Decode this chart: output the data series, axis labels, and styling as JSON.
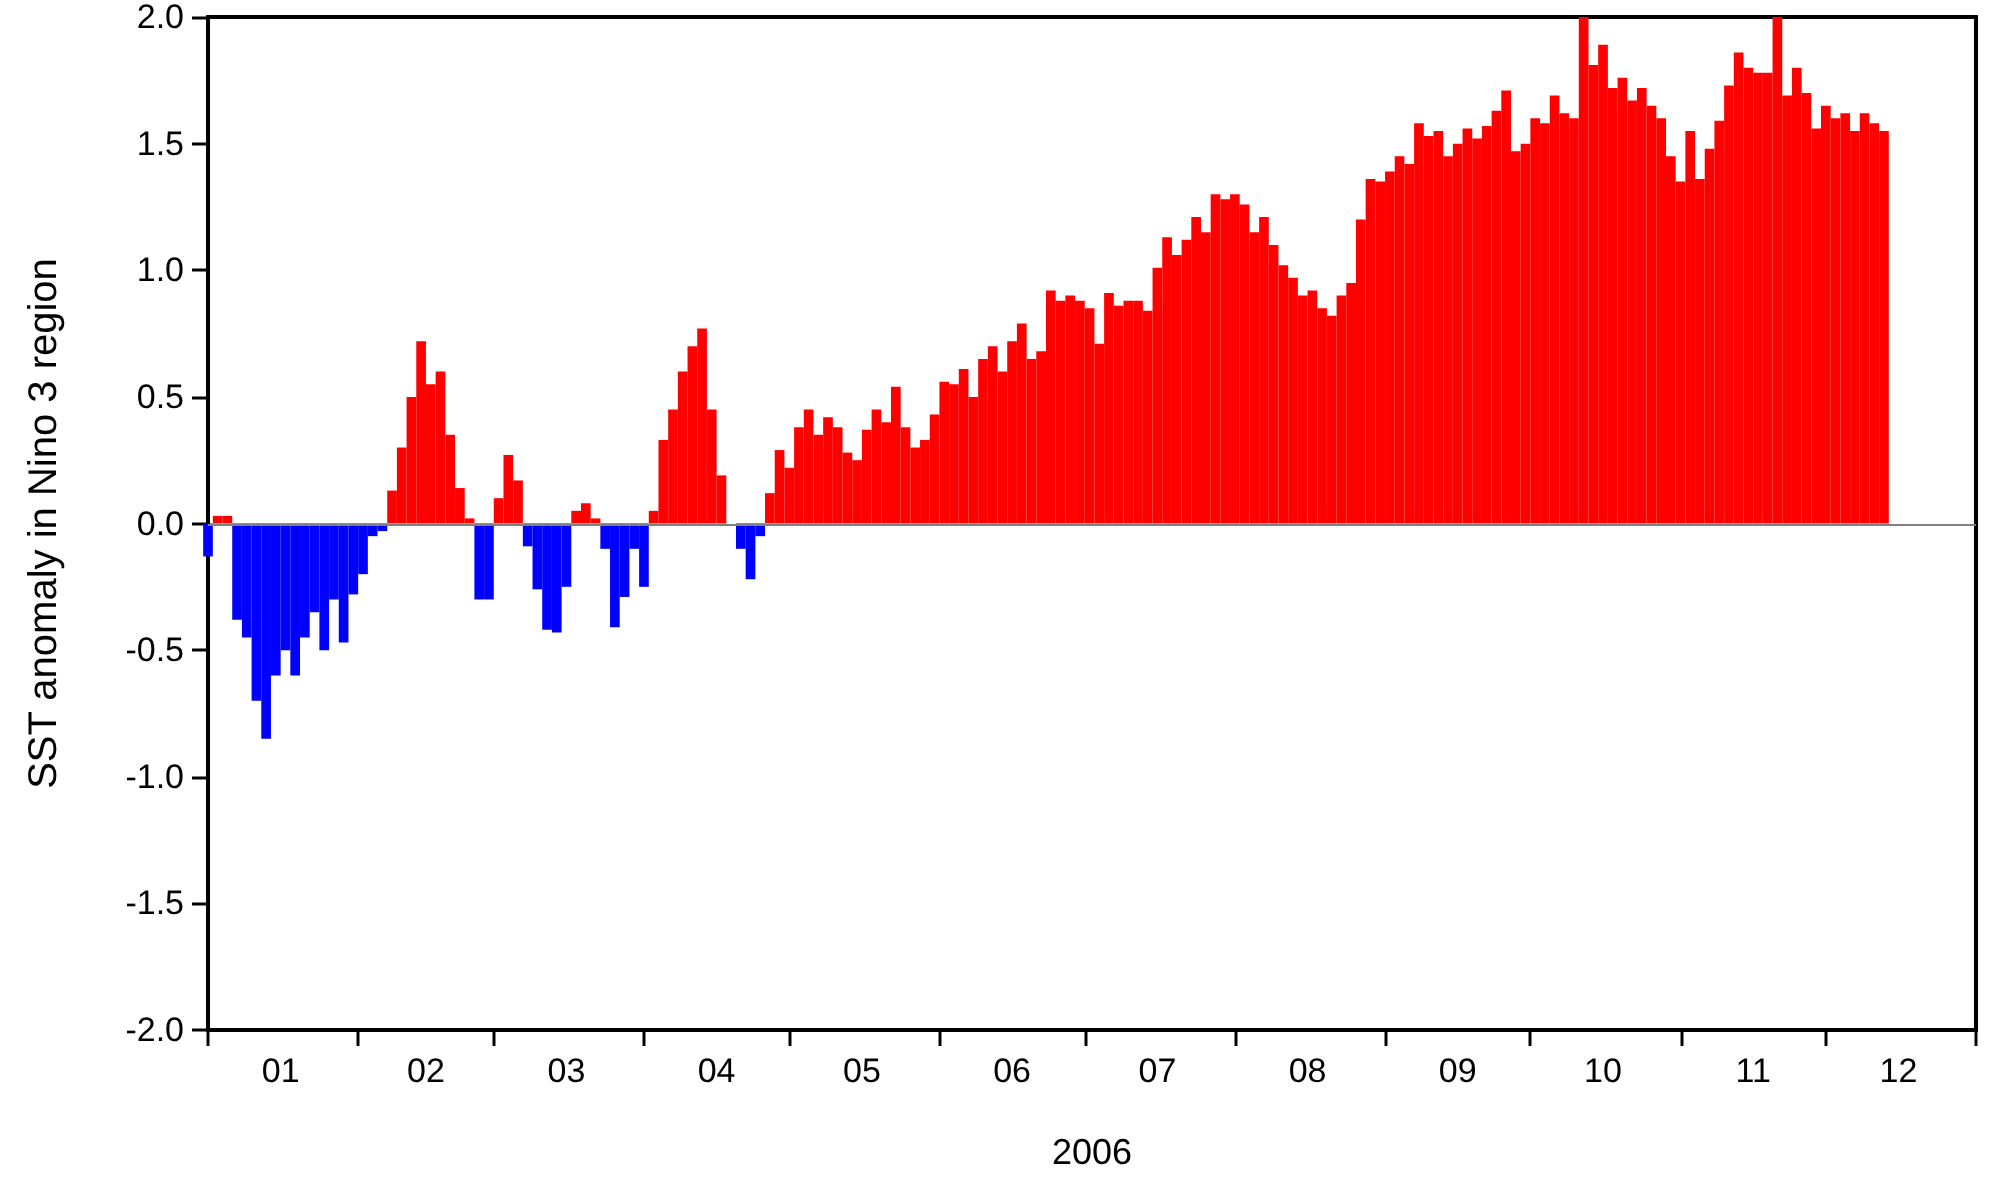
{
  "chart_data": {
    "type": "bar",
    "xlabel": "2006",
    "ylabel": "SST anomaly in Nino 3 region",
    "x": [
      "2006-01-01",
      "2006-01-03",
      "2006-01-05",
      "2006-01-07",
      "2006-01-09",
      "2006-01-11",
      "2006-01-13",
      "2006-01-15",
      "2006-01-17",
      "2006-01-19",
      "2006-01-21",
      "2006-01-23",
      "2006-01-25",
      "2006-01-27",
      "2006-01-29",
      "2006-01-31",
      "2006-02-02",
      "2006-02-04",
      "2006-02-06",
      "2006-02-08",
      "2006-02-10",
      "2006-02-12",
      "2006-02-14",
      "2006-02-16",
      "2006-02-18",
      "2006-02-20",
      "2006-02-22",
      "2006-02-24",
      "2006-02-26",
      "2006-02-28",
      "2006-03-02",
      "2006-03-04",
      "2006-03-06",
      "2006-03-08",
      "2006-03-10",
      "2006-03-12",
      "2006-03-14",
      "2006-03-16",
      "2006-03-18",
      "2006-03-20",
      "2006-03-22",
      "2006-03-24",
      "2006-03-26",
      "2006-03-28",
      "2006-03-30",
      "2006-04-01",
      "2006-04-03",
      "2006-04-05",
      "2006-04-07",
      "2006-04-09",
      "2006-04-11",
      "2006-04-13",
      "2006-04-15",
      "2006-04-17",
      "2006-04-19",
      "2006-04-21",
      "2006-04-23",
      "2006-04-25",
      "2006-04-27",
      "2006-04-29",
      "2006-05-01",
      "2006-05-03",
      "2006-05-05",
      "2006-05-07",
      "2006-05-09",
      "2006-05-11",
      "2006-05-13",
      "2006-05-15",
      "2006-05-17",
      "2006-05-19",
      "2006-05-21",
      "2006-05-23",
      "2006-05-25",
      "2006-05-27",
      "2006-05-29",
      "2006-05-31",
      "2006-06-02",
      "2006-06-04",
      "2006-06-06",
      "2006-06-08",
      "2006-06-10",
      "2006-06-12",
      "2006-06-14",
      "2006-06-16",
      "2006-06-18",
      "2006-06-20",
      "2006-06-22",
      "2006-06-24",
      "2006-06-26",
      "2006-06-28",
      "2006-06-30",
      "2006-07-02",
      "2006-07-04",
      "2006-07-06",
      "2006-07-08",
      "2006-07-10",
      "2006-07-12",
      "2006-07-14",
      "2006-07-16",
      "2006-07-18",
      "2006-07-20",
      "2006-07-22",
      "2006-07-24",
      "2006-07-26",
      "2006-07-28",
      "2006-07-30",
      "2006-08-01",
      "2006-08-03",
      "2006-08-05",
      "2006-08-07",
      "2006-08-09",
      "2006-08-11",
      "2006-08-13",
      "2006-08-15",
      "2006-08-17",
      "2006-08-19",
      "2006-08-21",
      "2006-08-23",
      "2006-08-25",
      "2006-08-27",
      "2006-08-29",
      "2006-08-31",
      "2006-09-02",
      "2006-09-04",
      "2006-09-06",
      "2006-09-08",
      "2006-09-10",
      "2006-09-12",
      "2006-09-14",
      "2006-09-16",
      "2006-09-18",
      "2006-09-20",
      "2006-09-22",
      "2006-09-24",
      "2006-09-26",
      "2006-09-28",
      "2006-09-30",
      "2006-10-02",
      "2006-10-04",
      "2006-10-06",
      "2006-10-08",
      "2006-10-10",
      "2006-10-12",
      "2006-10-14",
      "2006-10-16",
      "2006-10-18",
      "2006-10-20",
      "2006-10-22",
      "2006-10-24",
      "2006-10-26",
      "2006-10-28",
      "2006-10-30",
      "2006-11-01",
      "2006-11-03",
      "2006-11-05",
      "2006-11-07",
      "2006-11-09",
      "2006-11-11",
      "2006-11-13",
      "2006-11-15",
      "2006-11-17",
      "2006-11-19",
      "2006-11-21",
      "2006-11-23",
      "2006-11-25",
      "2006-11-27",
      "2006-11-29",
      "2006-12-01",
      "2006-12-03",
      "2006-12-05",
      "2006-12-07",
      "2006-12-09",
      "2006-12-11",
      "2006-12-13"
    ],
    "values": [
      -0.13,
      0.03,
      0.03,
      -0.38,
      -0.45,
      -0.7,
      -0.85,
      -0.6,
      -0.5,
      -0.6,
      -0.45,
      -0.35,
      -0.5,
      -0.3,
      -0.47,
      -0.28,
      -0.2,
      -0.05,
      -0.03,
      0.13,
      0.3,
      0.5,
      0.72,
      0.55,
      0.6,
      0.35,
      0.14,
      0.02,
      -0.3,
      -0.3,
      0.1,
      0.27,
      0.17,
      -0.09,
      -0.26,
      -0.42,
      -0.43,
      -0.25,
      0.05,
      0.08,
      0.02,
      -0.1,
      -0.41,
      -0.29,
      -0.1,
      -0.25,
      0.05,
      0.33,
      0.45,
      0.6,
      0.7,
      0.77,
      0.45,
      0.19,
      0.0,
      -0.1,
      -0.22,
      -0.05,
      0.12,
      0.29,
      0.22,
      0.38,
      0.45,
      0.35,
      0.42,
      0.38,
      0.28,
      0.25,
      0.37,
      0.45,
      0.4,
      0.54,
      0.38,
      0.3,
      0.33,
      0.43,
      0.56,
      0.55,
      0.61,
      0.5,
      0.65,
      0.7,
      0.6,
      0.72,
      0.79,
      0.65,
      0.68,
      0.92,
      0.88,
      0.9,
      0.88,
      0.85,
      0.71,
      0.91,
      0.86,
      0.88,
      0.88,
      0.84,
      1.01,
      1.13,
      1.06,
      1.12,
      1.21,
      1.15,
      1.3,
      1.28,
      1.3,
      1.26,
      1.15,
      1.21,
      1.1,
      1.02,
      0.97,
      0.9,
      0.92,
      0.85,
      0.82,
      0.9,
      0.95,
      1.2,
      1.36,
      1.35,
      1.39,
      1.45,
      1.42,
      1.58,
      1.53,
      1.55,
      1.45,
      1.5,
      1.56,
      1.52,
      1.57,
      1.63,
      1.71,
      1.47,
      1.5,
      1.6,
      1.58,
      1.69,
      1.62,
      1.6,
      2.0,
      1.81,
      1.89,
      1.72,
      1.76,
      1.67,
      1.72,
      1.65,
      1.6,
      1.45,
      1.35,
      1.55,
      1.36,
      1.48,
      1.59,
      1.73,
      1.86,
      1.8,
      1.78,
      1.78,
      2.0,
      1.69,
      1.8,
      1.7,
      1.56,
      1.65,
      1.6,
      1.62,
      1.55,
      1.62,
      1.58,
      1.55
    ],
    "colors": [
      "#0000ff",
      "#ff0000",
      "#ff0000",
      "#0000ff",
      "#0000ff",
      "#0000ff",
      "#0000ff",
      "#0000ff",
      "#0000ff",
      "#0000ff",
      "#0000ff",
      "#0000ff",
      "#0000ff",
      "#0000ff",
      "#0000ff",
      "#0000ff",
      "#0000ff",
      "#0000ff",
      "#0000ff",
      "#ff0000",
      "#ff0000",
      "#ff0000",
      "#ff0000",
      "#ff0000",
      "#ff0000",
      "#ff0000",
      "#ff0000",
      "#ff0000",
      "#0000ff",
      "#0000ff",
      "#ff0000",
      "#ff0000",
      "#ff0000",
      "#0000ff",
      "#0000ff",
      "#0000ff",
      "#0000ff",
      "#0000ff",
      "#ff0000",
      "#ff0000",
      "#ff0000",
      "#0000ff",
      "#0000ff",
      "#0000ff",
      "#0000ff",
      "#0000ff",
      "#ff0000",
      "#ff0000",
      "#ff0000",
      "#ff0000",
      "#ff0000",
      "#ff0000",
      "#ff0000",
      "#ff0000",
      "#ff0000",
      "#0000ff",
      "#0000ff",
      "#0000ff",
      "#ff0000",
      "#ff0000",
      "#ff0000",
      "#ff0000",
      "#ff0000",
      "#ff0000",
      "#ff0000",
      "#ff0000",
      "#ff0000",
      "#ff0000",
      "#ff0000",
      "#ff0000",
      "#ff0000",
      "#ff0000",
      "#ff0000",
      "#ff0000",
      "#ff0000",
      "#ff0000",
      "#ff0000",
      "#ff0000",
      "#ff0000",
      "#ff0000",
      "#ff0000",
      "#ff0000",
      "#ff0000",
      "#ff0000",
      "#ff0000",
      "#ff0000",
      "#ff0000",
      "#ff0000",
      "#ff0000",
      "#ff0000",
      "#ff0000",
      "#ff0000",
      "#ff0000",
      "#ff0000",
      "#ff0000",
      "#ff0000",
      "#ff0000",
      "#ff0000",
      "#ff0000",
      "#ff0000",
      "#ff0000",
      "#ff0000",
      "#ff0000",
      "#ff0000",
      "#ff0000",
      "#ff0000",
      "#ff0000",
      "#ff0000",
      "#ff0000",
      "#ff0000",
      "#ff0000",
      "#ff0000",
      "#ff0000",
      "#ff0000",
      "#ff0000",
      "#ff0000",
      "#ff0000",
      "#ff0000",
      "#ff0000",
      "#ff0000",
      "#ff0000",
      "#ff0000",
      "#ff0000",
      "#ff0000",
      "#ff0000",
      "#ff0000",
      "#ff0000",
      "#ff0000",
      "#ff0000",
      "#ff0000",
      "#ff0000",
      "#ff0000",
      "#ff0000",
      "#ff0000",
      "#ff0000",
      "#ff0000",
      "#ff0000",
      "#ff0000",
      "#ff0000",
      "#ff0000",
      "#ff0000",
      "#ff0000",
      "#ff0000",
      "#ff0000",
      "#ff0000",
      "#ff0000",
      "#ff0000",
      "#ff0000",
      "#ff0000",
      "#ff0000",
      "#ff0000",
      "#ff0000",
      "#ff0000",
      "#ff0000",
      "#ff0000",
      "#ff0000",
      "#ff0000",
      "#ff0000",
      "#ff0000",
      "#ff0000",
      "#ff0000",
      "#ff0000",
      "#ff0000",
      "#ff0000",
      "#ff0000",
      "#ff0000",
      "#ff0000",
      "#ff0000",
      "#ff0000",
      "#ff0000",
      "#ff0000",
      "#ff0000",
      "#ff0000",
      "#ff0000"
    ],
    "xlim": [
      "2006-01-01",
      "2007-01-01"
    ],
    "xticks": [
      {
        "value": "2006-01-01",
        "label": null
      },
      {
        "value": "2006-01-16",
        "label": "01"
      },
      {
        "value": "2006-02-01",
        "label": null
      },
      {
        "value": "2006-02-15",
        "label": "02"
      },
      {
        "value": "2006-03-01",
        "label": null
      },
      {
        "value": "2006-03-16",
        "label": "03"
      },
      {
        "value": "2006-04-01",
        "label": null
      },
      {
        "value": "2006-04-16",
        "label": "04"
      },
      {
        "value": "2006-05-01",
        "label": null
      },
      {
        "value": "2006-05-16",
        "label": "05"
      },
      {
        "value": "2006-06-01",
        "label": null
      },
      {
        "value": "2006-06-16",
        "label": "06"
      },
      {
        "value": "2006-07-01",
        "label": null
      },
      {
        "value": "2006-07-16",
        "label": "07"
      },
      {
        "value": "2006-08-01",
        "label": null
      },
      {
        "value": "2006-08-16",
        "label": "08"
      },
      {
        "value": "2006-09-01",
        "label": null
      },
      {
        "value": "2006-09-16",
        "label": "09"
      },
      {
        "value": "2006-10-01",
        "label": null
      },
      {
        "value": "2006-10-16",
        "label": "10"
      },
      {
        "value": "2006-11-01",
        "label": null
      },
      {
        "value": "2006-11-16",
        "label": "11"
      },
      {
        "value": "2006-12-01",
        "label": null
      },
      {
        "value": "2006-12-16",
        "label": "12"
      },
      {
        "value": "2007-01-01",
        "label": null
      }
    ],
    "ylim": [
      -2,
      2
    ],
    "yticks": [
      {
        "value": -2,
        "label": "-2.0"
      },
      {
        "value": -1.5,
        "label": "-1.5"
      },
      {
        "value": -1,
        "label": "-1.0"
      },
      {
        "value": -0.5,
        "label": "-0.5"
      },
      {
        "value": 0,
        "label": "0.0"
      },
      {
        "value": 0.5,
        "label": "0.5"
      },
      {
        "value": 1,
        "label": "1.0"
      },
      {
        "value": 1.5,
        "label": "1.5"
      },
      {
        "value": 2,
        "label": "2.0"
      }
    ],
    "ref_lines": [
      {
        "axis": "y",
        "value": 0,
        "color": "#808080"
      }
    ],
    "grid": false
  }
}
